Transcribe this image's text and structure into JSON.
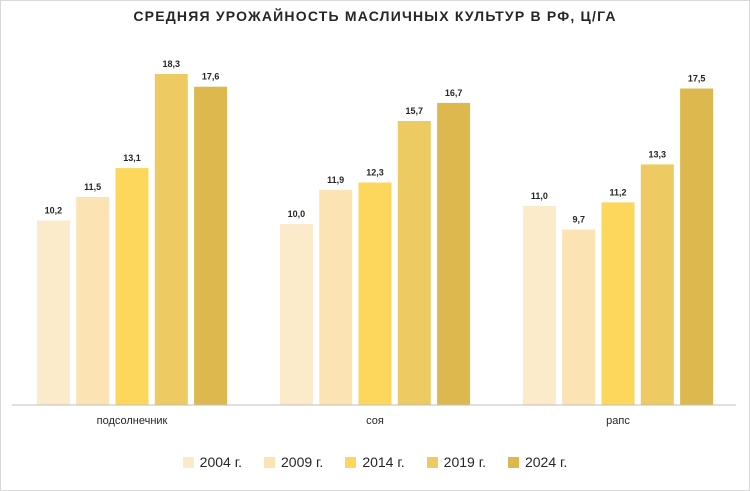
{
  "chart_data": {
    "type": "bar",
    "title": "СРЕДНЯЯ УРОЖАЙНОСТЬ МАСЛИЧНЫХ КУЛЬТУР В РФ, Ц/ГА",
    "categories": [
      "подсолнечник",
      "соя",
      "рапс"
    ],
    "series": [
      {
        "name": "2004 г.",
        "values": [
          10.2,
          10.0,
          11.0
        ],
        "color": "#FCEBCB",
        "labels": [
          "10,2",
          "10,0",
          "11,0"
        ]
      },
      {
        "name": "2009 г.",
        "values": [
          11.5,
          11.9,
          9.7
        ],
        "color": "#FCE3B4",
        "labels": [
          "11,5",
          "11,9",
          "9,7"
        ]
      },
      {
        "name": "2014 г.",
        "values": [
          13.1,
          12.3,
          11.2
        ],
        "color": "#FDD65C",
        "labels": [
          "13,1",
          "12,3",
          "11,2"
        ]
      },
      {
        "name": "2019 г.",
        "values": [
          18.3,
          15.7,
          13.3
        ],
        "color": "#EECA62",
        "labels": [
          "18,3",
          "15,7",
          "13,3"
        ]
      },
      {
        "name": "2024 г.",
        "values": [
          17.6,
          16.7,
          17.5
        ],
        "color": "#DDB84E",
        "labels": [
          "17,6",
          "16,7",
          "17,5"
        ]
      }
    ],
    "ylim": [
      0,
      18.3
    ],
    "grid": false,
    "legend": "bottom"
  }
}
